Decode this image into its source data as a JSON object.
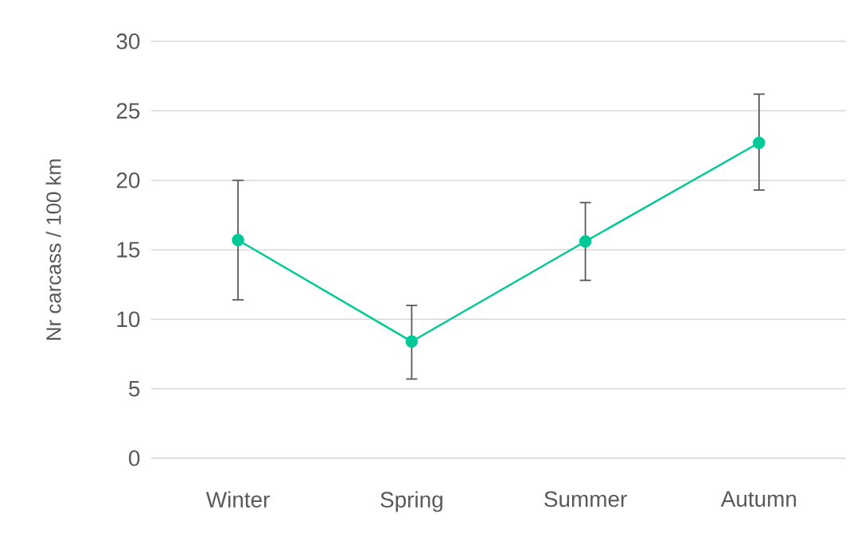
{
  "chart_data": {
    "type": "line",
    "ylabel": "Nr carcass / 100 km",
    "categories": [
      "Winter",
      "Spring",
      "Summer",
      "Autumn"
    ],
    "values": [
      15.7,
      8.4,
      15.6,
      22.7
    ],
    "errors": [
      [
        11.4,
        20.0
      ],
      [
        5.7,
        11.0
      ],
      [
        12.8,
        18.4
      ],
      [
        19.3,
        26.2
      ]
    ],
    "color": "#00c896",
    "marker": "circle",
    "line_style": "solid",
    "ylim": [
      0,
      30
    ],
    "yticks": [
      0,
      5,
      10,
      15,
      20,
      25,
      30
    ],
    "grid": "y"
  }
}
